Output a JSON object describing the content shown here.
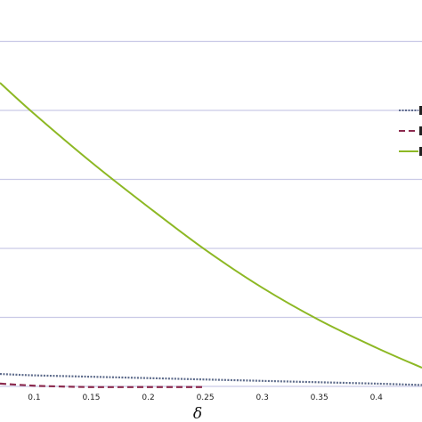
{
  "chart_data": {
    "type": "line",
    "xlabel": "δ",
    "ylabel": "",
    "title": "",
    "xlim": [
      0.07,
      0.44
    ],
    "ylim": [
      0,
      5.6
    ],
    "x_ticks": [
      0.1,
      0.15,
      0.2,
      0.25,
      0.3,
      0.35,
      0.4
    ],
    "x_tick_labels": [
      "0.1",
      "0.15",
      "0.2",
      "0.25",
      "0.3",
      "0.35",
      "0.4"
    ],
    "y_gridlines": [
      1,
      2,
      3,
      4,
      5
    ],
    "grid": "horizontal",
    "legend_position": "right",
    "legend_labels_visible": false,
    "series": [
      {
        "style": "dotted",
        "color": "#5c6a8a",
        "x": [
          0.07,
          0.1,
          0.15,
          0.2,
          0.25,
          0.3,
          0.35,
          0.4,
          0.44
        ],
        "y": [
          0.18,
          0.16,
          0.14,
          0.12,
          0.1,
          0.08,
          0.06,
          0.04,
          0.02
        ]
      },
      {
        "style": "dashed",
        "color": "#8b2a4e",
        "x": [
          0.07,
          0.1,
          0.12,
          0.15,
          0.2,
          0.25
        ],
        "y": [
          0.04,
          0.01,
          0.0,
          -0.01,
          -0.01,
          -0.01
        ]
      },
      {
        "style": "solid",
        "color": "#8db824",
        "x": [
          0.07,
          0.1,
          0.15,
          0.2,
          0.25,
          0.3,
          0.35,
          0.4,
          0.44
        ],
        "y": [
          4.4,
          3.95,
          3.25,
          2.6,
          1.98,
          1.43,
          0.96,
          0.56,
          0.27
        ]
      }
    ]
  }
}
